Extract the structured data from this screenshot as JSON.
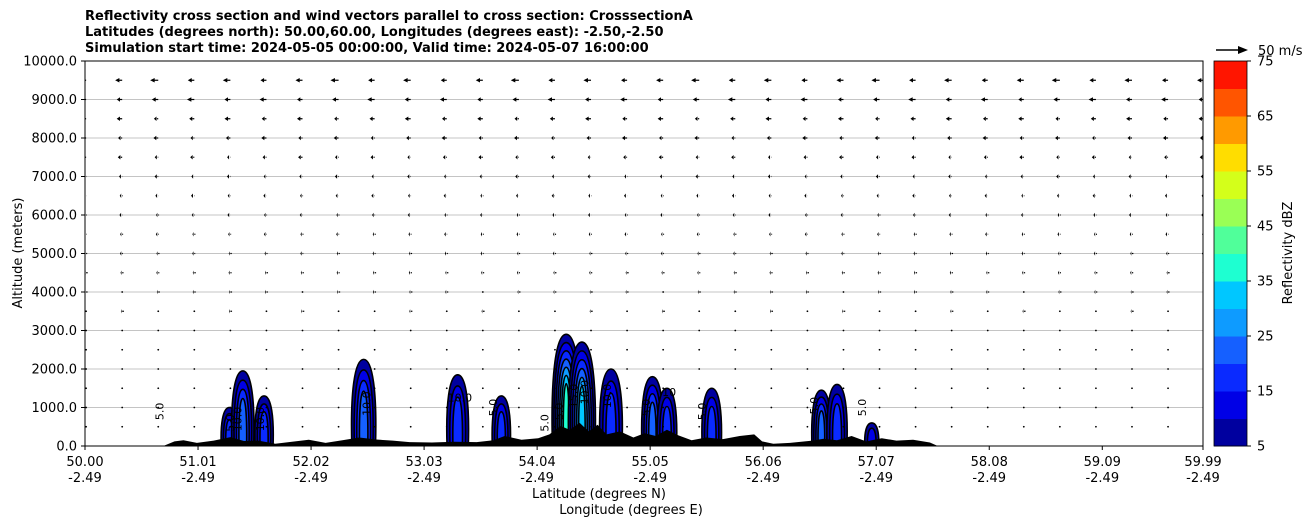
{
  "title_lines": [
    "Reflectivity cross section and wind vectors parallel to cross section: CrosssectionA",
    "Latitudes (degrees north): 50.00,60.00, Longitudes (degrees east): -2.50,-2.50",
    "Simulation start time: 2024-05-05 00:00:00, Valid time: 2024-05-07 16:00:00"
  ],
  "chart_data": {
    "type": "heatmap",
    "xlabel": "Latitude (degrees N)",
    "xlabel2": "Longitude (degrees E)",
    "ylabel": "Altitude (meters)",
    "xlim": [
      50.0,
      59.99
    ],
    "ylim": [
      0,
      10000
    ],
    "x_ticks": [
      {
        "lat": "50.00",
        "lon": "-2.49",
        "v": 50.0
      },
      {
        "lat": "51.01",
        "lon": "-2.49",
        "v": 51.01
      },
      {
        "lat": "52.02",
        "lon": "-2.49",
        "v": 52.02
      },
      {
        "lat": "53.03",
        "lon": "-2.49",
        "v": 53.03
      },
      {
        "lat": "54.04",
        "lon": "-2.49",
        "v": 54.04
      },
      {
        "lat": "55.05",
        "lon": "-2.49",
        "v": 55.05
      },
      {
        "lat": "56.06",
        "lon": "-2.49",
        "v": 56.06
      },
      {
        "lat": "57.07",
        "lon": "-2.49",
        "v": 57.07
      },
      {
        "lat": "58.08",
        "lon": "-2.49",
        "v": 58.08
      },
      {
        "lat": "59.09",
        "lon": "-2.49",
        "v": 59.09
      },
      {
        "lat": "59.99",
        "lon": "-2.49",
        "v": 59.99
      }
    ],
    "y_ticks": [
      "0.0",
      "1000.0",
      "2000.0",
      "3000.0",
      "4000.0",
      "5000.0",
      "6000.0",
      "7000.0",
      "8000.0",
      "9000.0",
      "10000.0"
    ],
    "y_tick_values": [
      0,
      1000,
      2000,
      3000,
      4000,
      5000,
      6000,
      7000,
      8000,
      9000,
      10000
    ],
    "grid": "horizontal",
    "colorbar": {
      "label": "Reflectivity dBZ",
      "levels": [
        5,
        10,
        15,
        20,
        25,
        30,
        35,
        40,
        45,
        50,
        55,
        60,
        65,
        70,
        75
      ],
      "tick_labels": [
        "5",
        "15",
        "25",
        "35",
        "45",
        "55",
        "65",
        "75"
      ],
      "tick_values": [
        5,
        15,
        25,
        35,
        45,
        55,
        65,
        75
      ],
      "colors": [
        "#00009f",
        "#0000e6",
        "#0a2aff",
        "#1560ff",
        "#0e9bff",
        "#00c7ff",
        "#1effd1",
        "#50ff9a",
        "#9aff55",
        "#d4ff1a",
        "#ffdd00",
        "#ff9a00",
        "#ff5500",
        "#ff1500",
        "#a80000"
      ]
    },
    "wind": {
      "reference_label": "50 m/s",
      "color": "#000000",
      "heights_m": [
        9500,
        9000,
        8500,
        8000,
        7500,
        7000,
        6500,
        6000,
        5500,
        5000,
        4500,
        4000,
        3500,
        3000,
        2500,
        2000,
        1500,
        1000,
        500
      ],
      "speed_m_s_by_height": [
        11,
        10,
        8,
        7,
        6,
        5,
        4.5,
        4,
        3.5,
        3,
        2.6,
        2.2,
        1.8,
        1.5,
        1.2,
        1,
        0.8,
        0.6,
        0.4
      ],
      "direction": "toward decreasing latitude"
    },
    "cells": [
      {
        "lat": 51.29,
        "top_m": 1000,
        "max_dbz": 15
      },
      {
        "lat": 51.41,
        "top_m": 1950,
        "max_dbz": 20
      },
      {
        "lat": 51.6,
        "top_m": 1300,
        "max_dbz": 15
      },
      {
        "lat": 52.49,
        "top_m": 2250,
        "max_dbz": 20
      },
      {
        "lat": 53.33,
        "top_m": 1850,
        "max_dbz": 15
      },
      {
        "lat": 53.72,
        "top_m": 1300,
        "max_dbz": 15
      },
      {
        "lat": 54.3,
        "top_m": 2900,
        "max_dbz": 35
      },
      {
        "lat": 54.44,
        "top_m": 2700,
        "max_dbz": 30
      },
      {
        "lat": 54.7,
        "top_m": 2000,
        "max_dbz": 15
      },
      {
        "lat": 55.07,
        "top_m": 1800,
        "max_dbz": 20
      },
      {
        "lat": 55.2,
        "top_m": 1500,
        "max_dbz": 15
      },
      {
        "lat": 55.6,
        "top_m": 1500,
        "max_dbz": 15
      },
      {
        "lat": 56.58,
        "top_m": 1450,
        "max_dbz": 20
      },
      {
        "lat": 56.72,
        "top_m": 1600,
        "max_dbz": 15
      },
      {
        "lat": 57.03,
        "top_m": 600,
        "max_dbz": 10
      }
    ],
    "contour_labels": [
      {
        "lat": 50.7,
        "alt_m": 900,
        "text": "5.0",
        "rot": -90
      },
      {
        "lat": 51.33,
        "alt_m": 600,
        "text": "5.0",
        "rot": -90
      },
      {
        "lat": 51.4,
        "alt_m": 700,
        "text": "10.0",
        "rot": -90
      },
      {
        "lat": 51.6,
        "alt_m": 700,
        "text": "10.0",
        "rot": -90
      },
      {
        "lat": 52.55,
        "alt_m": 1100,
        "text": "10.0",
        "rot": -90
      },
      {
        "lat": 53.35,
        "alt_m": 1150,
        "text": "10.0",
        "rot": 0
      },
      {
        "lat": 53.68,
        "alt_m": 1000,
        "text": "5.0",
        "rot": -90
      },
      {
        "lat": 54.14,
        "alt_m": 600,
        "text": "5.0",
        "rot": -90
      },
      {
        "lat": 54.27,
        "alt_m": 900,
        "text": "5.0",
        "rot": -90
      },
      {
        "lat": 54.4,
        "alt_m": 1300,
        "text": "15.0",
        "rot": -90
      },
      {
        "lat": 54.5,
        "alt_m": 1400,
        "text": "10.0",
        "rot": -90
      },
      {
        "lat": 54.7,
        "alt_m": 1300,
        "text": "10.0",
        "rot": -90
      },
      {
        "lat": 55.05,
        "alt_m": 1000,
        "text": "5.0",
        "rot": -90
      },
      {
        "lat": 55.22,
        "alt_m": 1300,
        "text": "10",
        "rot": 0
      },
      {
        "lat": 55.55,
        "alt_m": 900,
        "text": "5.0",
        "rot": -90
      },
      {
        "lat": 56.55,
        "alt_m": 1050,
        "text": "5.0",
        "rot": -90
      },
      {
        "lat": 56.98,
        "alt_m": 1000,
        "text": "5.0",
        "rot": -90
      }
    ],
    "terrain_max_m": [
      [
        50.7,
        0
      ],
      [
        50.8,
        120
      ],
      [
        50.88,
        150
      ],
      [
        51.0,
        80
      ],
      [
        51.15,
        140
      ],
      [
        51.3,
        230
      ],
      [
        51.42,
        130
      ],
      [
        51.55,
        140
      ],
      [
        51.7,
        60
      ],
      [
        51.85,
        110
      ],
      [
        52.0,
        160
      ],
      [
        52.15,
        80
      ],
      [
        52.3,
        150
      ],
      [
        52.45,
        220
      ],
      [
        52.6,
        170
      ],
      [
        52.75,
        140
      ],
      [
        52.9,
        100
      ],
      [
        53.1,
        90
      ],
      [
        53.3,
        110
      ],
      [
        53.5,
        100
      ],
      [
        53.65,
        150
      ],
      [
        53.75,
        260
      ],
      [
        53.9,
        160
      ],
      [
        54.05,
        200
      ],
      [
        54.15,
        300
      ],
      [
        54.25,
        520
      ],
      [
        54.33,
        420
      ],
      [
        54.42,
        600
      ],
      [
        54.5,
        380
      ],
      [
        54.58,
        550
      ],
      [
        54.66,
        300
      ],
      [
        54.78,
        380
      ],
      [
        54.9,
        220
      ],
      [
        55.0,
        330
      ],
      [
        55.1,
        260
      ],
      [
        55.2,
        420
      ],
      [
        55.3,
        280
      ],
      [
        55.42,
        150
      ],
      [
        55.55,
        220
      ],
      [
        55.7,
        180
      ],
      [
        55.85,
        260
      ],
      [
        55.98,
        300
      ],
      [
        56.05,
        120
      ],
      [
        56.15,
        60
      ],
      [
        56.3,
        80
      ],
      [
        56.5,
        140
      ],
      [
        56.6,
        190
      ],
      [
        56.72,
        150
      ],
      [
        56.85,
        260
      ],
      [
        56.98,
        120
      ],
      [
        57.12,
        200
      ],
      [
        57.25,
        140
      ],
      [
        57.4,
        160
      ],
      [
        57.55,
        90
      ],
      [
        57.62,
        0
      ]
    ]
  }
}
